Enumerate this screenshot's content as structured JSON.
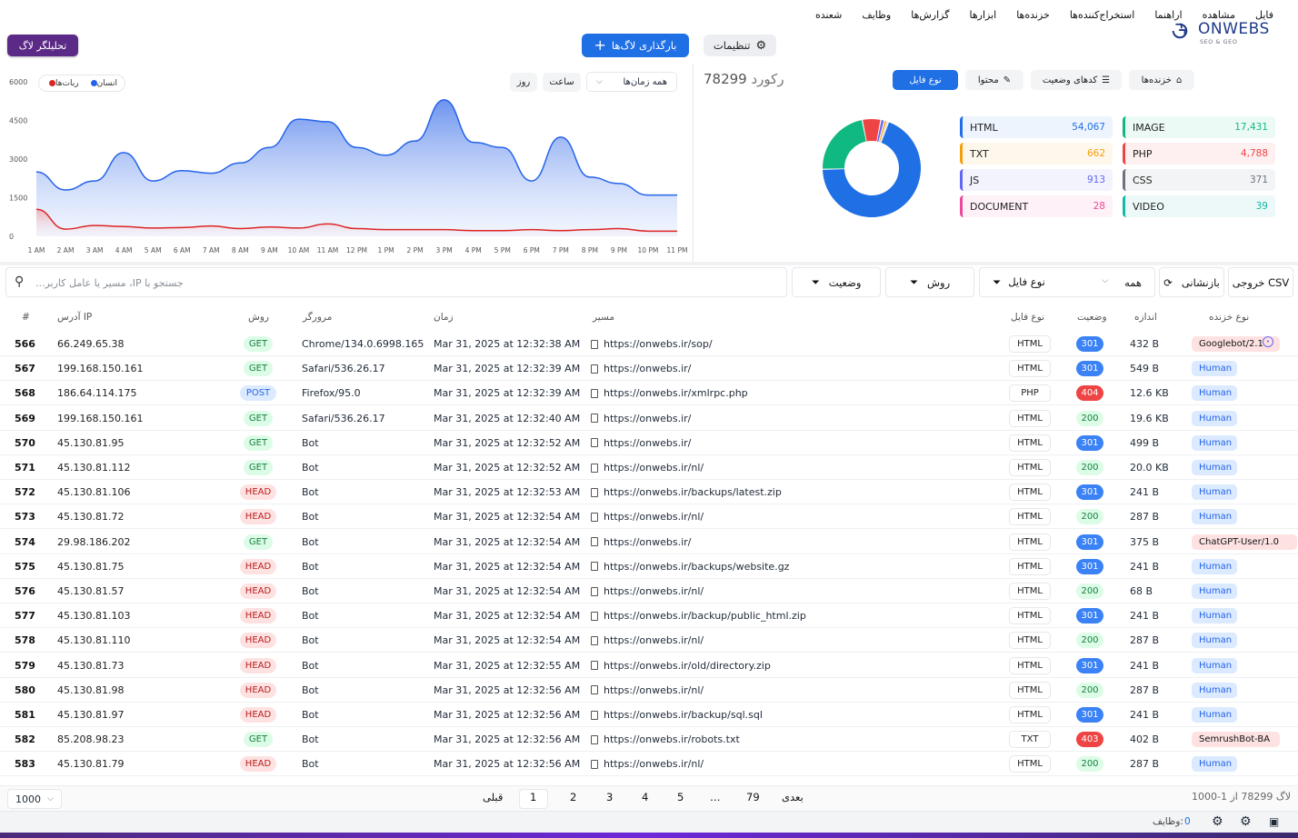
{
  "menu": [
    "فایل",
    "مشاهده",
    "اراهنما",
    "استخراج‌کننده‌ها",
    "خزنده‌ها",
    "ابزارها",
    "گزارش‌ها",
    "وظایف",
    "شعنده"
  ],
  "toolbar": {
    "analyzer": "تحلیلگر لاگ",
    "upload": "بارگذاری لاگ‌ها",
    "settings": "تنظیمات"
  },
  "logo": {
    "name": "ONWEBS",
    "tagline": "SEO & GEO"
  },
  "chart": {
    "legend_human": "انسان",
    "legend_bots": "ربات‌ها",
    "btn_day": "روز",
    "btn_hour": "ساعت",
    "timerange": "همه زمان‌ها",
    "colors": {
      "human": "#2563eb",
      "bots": "#dc2626"
    }
  },
  "chart_data": {
    "type": "area",
    "x": [
      "1 AM",
      "2 AM",
      "3 AM",
      "4 AM",
      "5 AM",
      "6 AM",
      "7 AM",
      "8 AM",
      "9 AM",
      "10 AM",
      "11 AM",
      "12 PM",
      "1 PM",
      "2 PM",
      "3 PM",
      "4 PM",
      "5 PM",
      "6 PM",
      "7 PM",
      "8 PM",
      "9 PM",
      "10 PM",
      "11 PM"
    ],
    "yticks": [
      0,
      1500,
      3000,
      4500,
      6000
    ],
    "ylim": [
      0,
      6000
    ],
    "series": [
      {
        "name": "انسان",
        "values": [
          2500,
          1800,
          2150,
          3250,
          2150,
          2550,
          2450,
          2850,
          3450,
          4550,
          4450,
          3450,
          3150,
          3700,
          5300,
          3650,
          3450,
          2150,
          3850,
          2300,
          2050,
          1600,
          1600
        ]
      },
      {
        "name": "ربات‌ها",
        "values": [
          1050,
          280,
          420,
          380,
          320,
          340,
          400,
          300,
          360,
          320,
          480,
          300,
          260,
          260,
          260,
          220,
          220,
          260,
          220,
          260,
          300,
          200,
          200
        ]
      }
    ]
  },
  "summary": {
    "records_label": "رکورد",
    "records_count": "78299",
    "tabs": [
      "نوع فایل",
      "محتوا",
      "کدهای وضعیت",
      "خزنده‌ها"
    ]
  },
  "filetypes": [
    {
      "label": "HTML",
      "value": "54,067",
      "color": "#1f6fe5",
      "raw": 54067
    },
    {
      "label": "IMAGE",
      "value": "17,431",
      "color": "#10b981",
      "raw": 17431
    },
    {
      "label": "TXT",
      "value": "662",
      "color": "#f59e0b",
      "raw": 662
    },
    {
      "label": "PHP",
      "value": "4,788",
      "color": "#ef4444",
      "raw": 4788
    },
    {
      "label": "JS",
      "value": "913",
      "color": "#6366f1",
      "raw": 913
    },
    {
      "label": "CSS",
      "value": "371",
      "color": "#6b7280",
      "raw": 371
    },
    {
      "label": "DOCUMENT",
      "value": "28",
      "color": "#ec4899",
      "raw": 28
    },
    {
      "label": "VIDEO",
      "value": "39",
      "color": "#14b8a6",
      "raw": 39
    }
  ],
  "filters": {
    "search_placeholder": "جستجو با IP، مسیر یا عامل کاربر...",
    "status": "وضعیت",
    "method": "روش",
    "filetype": "نوع فایل",
    "all": "همه",
    "reset": "بازنشانی",
    "export": "خروجی CSV"
  },
  "columns": {
    "num": "#",
    "ip": "آدرس IP",
    "method": "روش",
    "browser": "مرورگر",
    "time": "زمان",
    "path": "مسیر",
    "filetype": "نوع فایل",
    "status": "وضعیت",
    "size": "اندازه",
    "crawler": "نوع خزنده"
  },
  "rows": [
    {
      "n": "566",
      "ip": "66.249.65.38",
      "m": "GET",
      "b": "Chrome/134.0.6998.165",
      "t": "Mar 31, 2025 at 12:32:38 AM",
      "p": "https://onwebs.ir/sop/",
      "f": "HTML",
      "s": "301",
      "z": "432 B",
      "c": "Googlebot/2.1",
      "cb": true
    },
    {
      "n": "567",
      "ip": "199.168.150.161",
      "m": "GET",
      "b": "Safari/536.26.17",
      "t": "Mar 31, 2025 at 12:32:39 AM",
      "p": "https://onwebs.ir/",
      "f": "HTML",
      "s": "301",
      "z": "549 B",
      "c": "Human"
    },
    {
      "n": "568",
      "ip": "186.64.114.175",
      "m": "POST",
      "b": "Firefox/95.0",
      "t": "Mar 31, 2025 at 12:32:39 AM",
      "p": "https://onwebs.ir/xmlrpc.php",
      "f": "PHP",
      "s": "404",
      "z": "12.6 KB",
      "c": "Human"
    },
    {
      "n": "569",
      "ip": "199.168.150.161",
      "m": "GET",
      "b": "Safari/536.26.17",
      "t": "Mar 31, 2025 at 12:32:40 AM",
      "p": "https://onwebs.ir/",
      "f": "HTML",
      "s": "200",
      "z": "19.6 KB",
      "c": "Human"
    },
    {
      "n": "570",
      "ip": "45.130.81.95",
      "m": "GET",
      "b": "Bot",
      "t": "Mar 31, 2025 at 12:32:52 AM",
      "p": "https://onwebs.ir/",
      "f": "HTML",
      "s": "301",
      "z": "499 B",
      "c": "Human"
    },
    {
      "n": "571",
      "ip": "45.130.81.112",
      "m": "GET",
      "b": "Bot",
      "t": "Mar 31, 2025 at 12:32:52 AM",
      "p": "https://onwebs.ir/nl/",
      "f": "HTML",
      "s": "200",
      "z": "20.0 KB",
      "c": "Human"
    },
    {
      "n": "572",
      "ip": "45.130.81.106",
      "m": "HEAD",
      "b": "Bot",
      "t": "Mar 31, 2025 at 12:32:53 AM",
      "p": "https://onwebs.ir/backups/latest.zip",
      "f": "HTML",
      "s": "301",
      "z": "241 B",
      "c": "Human"
    },
    {
      "n": "573",
      "ip": "45.130.81.72",
      "m": "HEAD",
      "b": "Bot",
      "t": "Mar 31, 2025 at 12:32:54 AM",
      "p": "https://onwebs.ir/nl/",
      "f": "HTML",
      "s": "200",
      "z": "287 B",
      "c": "Human"
    },
    {
      "n": "574",
      "ip": "29.98.186.202",
      "m": "GET",
      "b": "Bot",
      "t": "Mar 31, 2025 at 12:32:54 AM",
      "p": "https://onwebs.ir/",
      "f": "HTML",
      "s": "301",
      "z": "375 B",
      "c": "ChatGPT-User/1.0",
      "cb": true
    },
    {
      "n": "575",
      "ip": "45.130.81.75",
      "m": "HEAD",
      "b": "Bot",
      "t": "Mar 31, 2025 at 12:32:54 AM",
      "p": "https://onwebs.ir/backups/website.gz",
      "f": "HTML",
      "s": "301",
      "z": "241 B",
      "c": "Human"
    },
    {
      "n": "576",
      "ip": "45.130.81.57",
      "m": "HEAD",
      "b": "Bot",
      "t": "Mar 31, 2025 at 12:32:54 AM",
      "p": "https://onwebs.ir/nl/",
      "f": "HTML",
      "s": "200",
      "z": "68 B",
      "c": "Human"
    },
    {
      "n": "577",
      "ip": "45.130.81.103",
      "m": "HEAD",
      "b": "Bot",
      "t": "Mar 31, 2025 at 12:32:54 AM",
      "p": "https://onwebs.ir/backup/public_html.zip",
      "f": "HTML",
      "s": "301",
      "z": "241 B",
      "c": "Human"
    },
    {
      "n": "578",
      "ip": "45.130.81.110",
      "m": "HEAD",
      "b": "Bot",
      "t": "Mar 31, 2025 at 12:32:54 AM",
      "p": "https://onwebs.ir/nl/",
      "f": "HTML",
      "s": "200",
      "z": "287 B",
      "c": "Human"
    },
    {
      "n": "579",
      "ip": "45.130.81.73",
      "m": "HEAD",
      "b": "Bot",
      "t": "Mar 31, 2025 at 12:32:55 AM",
      "p": "https://onwebs.ir/old/directory.zip",
      "f": "HTML",
      "s": "301",
      "z": "241 B",
      "c": "Human"
    },
    {
      "n": "580",
      "ip": "45.130.81.98",
      "m": "HEAD",
      "b": "Bot",
      "t": "Mar 31, 2025 at 12:32:56 AM",
      "p": "https://onwebs.ir/nl/",
      "f": "HTML",
      "s": "200",
      "z": "287 B",
      "c": "Human"
    },
    {
      "n": "581",
      "ip": "45.130.81.97",
      "m": "HEAD",
      "b": "Bot",
      "t": "Mar 31, 2025 at 12:32:56 AM",
      "p": "https://onwebs.ir/backup/sql.sql",
      "f": "HTML",
      "s": "301",
      "z": "241 B",
      "c": "Human"
    },
    {
      "n": "582",
      "ip": "85.208.98.23",
      "m": "GET",
      "b": "Bot",
      "t": "Mar 31, 2025 at 12:32:56 AM",
      "p": "https://onwebs.ir/robots.txt",
      "f": "TXT",
      "s": "403",
      "z": "402 B",
      "c": "SemrushBot-BA",
      "cb": true
    },
    {
      "n": "583",
      "ip": "45.130.81.79",
      "m": "HEAD",
      "b": "Bot",
      "t": "Mar 31, 2025 at 12:32:56 AM",
      "p": "https://onwebs.ir/nl/",
      "f": "HTML",
      "s": "200",
      "z": "287 B",
      "c": "Human"
    }
  ],
  "pager": {
    "page_size": "1000",
    "prev": "قبلی",
    "next": "بعدی",
    "pages": [
      "1",
      "2",
      "3",
      "4",
      "5",
      "…",
      "79"
    ],
    "range": "لاگ 78299 از 1-1000"
  },
  "statusbar": {
    "tasks_label": "وظایف:",
    "tasks_count": "0"
  }
}
